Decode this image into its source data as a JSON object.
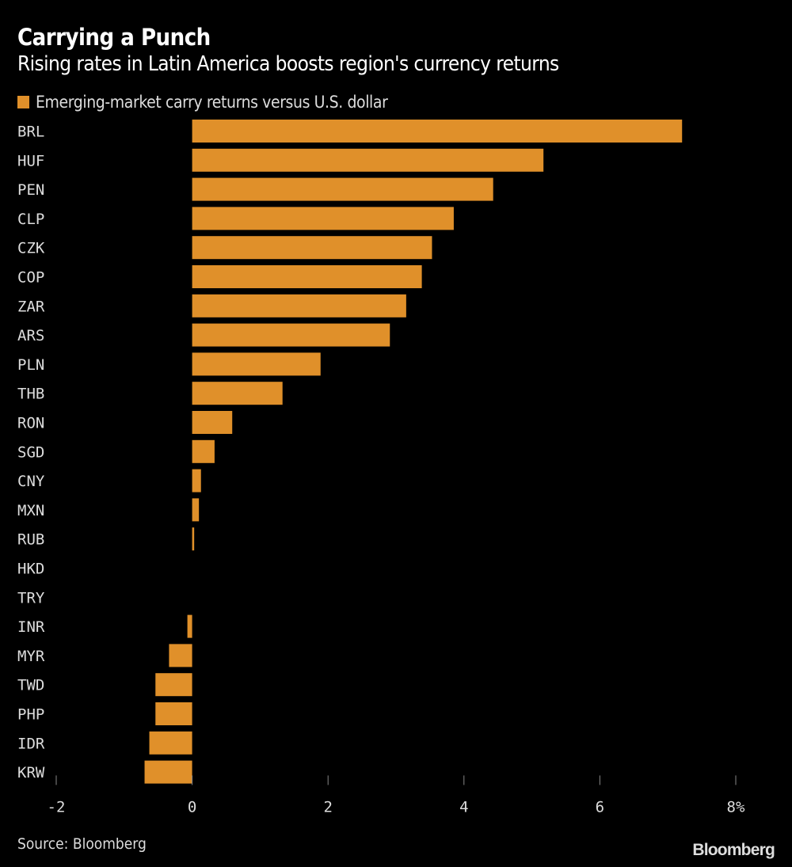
{
  "title": "Carrying a Punch",
  "subtitle": "Rising rates in Latin America boosts region's currency returns",
  "source": "Source: Bloomberg",
  "brand": "Bloomberg",
  "colors": {
    "bar": "#E0902A",
    "background": "#000000",
    "text": "#DDDDDD"
  },
  "chart_data": {
    "type": "bar",
    "orientation": "horizontal",
    "title": "Carrying a Punch",
    "subtitle": "Rising rates in Latin America boosts region's currency returns",
    "legend": "top-left",
    "categories": [
      "BRL",
      "HUF",
      "PEN",
      "CLP",
      "CZK",
      "COP",
      "ZAR",
      "ARS",
      "PLN",
      "THB",
      "RON",
      "SGD",
      "CNY",
      "MXN",
      "RUB",
      "HKD",
      "TRY",
      "INR",
      "MYR",
      "TWD",
      "PHP",
      "IDR",
      "KRW"
    ],
    "series": [
      {
        "name": "Emerging-market carry returns versus U.S. dollar",
        "values": [
          7.21,
          5.17,
          4.43,
          3.85,
          3.53,
          3.38,
          3.15,
          2.91,
          1.89,
          1.33,
          0.59,
          0.33,
          0.13,
          0.1,
          0.03,
          0,
          0,
          -0.07,
          -0.34,
          -0.54,
          -0.54,
          -0.63,
          -0.7
        ]
      }
    ],
    "xlim": [
      -2,
      8
    ],
    "xticks": [
      "-2",
      "0",
      "2",
      "4",
      "6",
      "8%"
    ],
    "xtick_values": [
      -2,
      0,
      2,
      4,
      6,
      8
    ],
    "grid": false
  }
}
